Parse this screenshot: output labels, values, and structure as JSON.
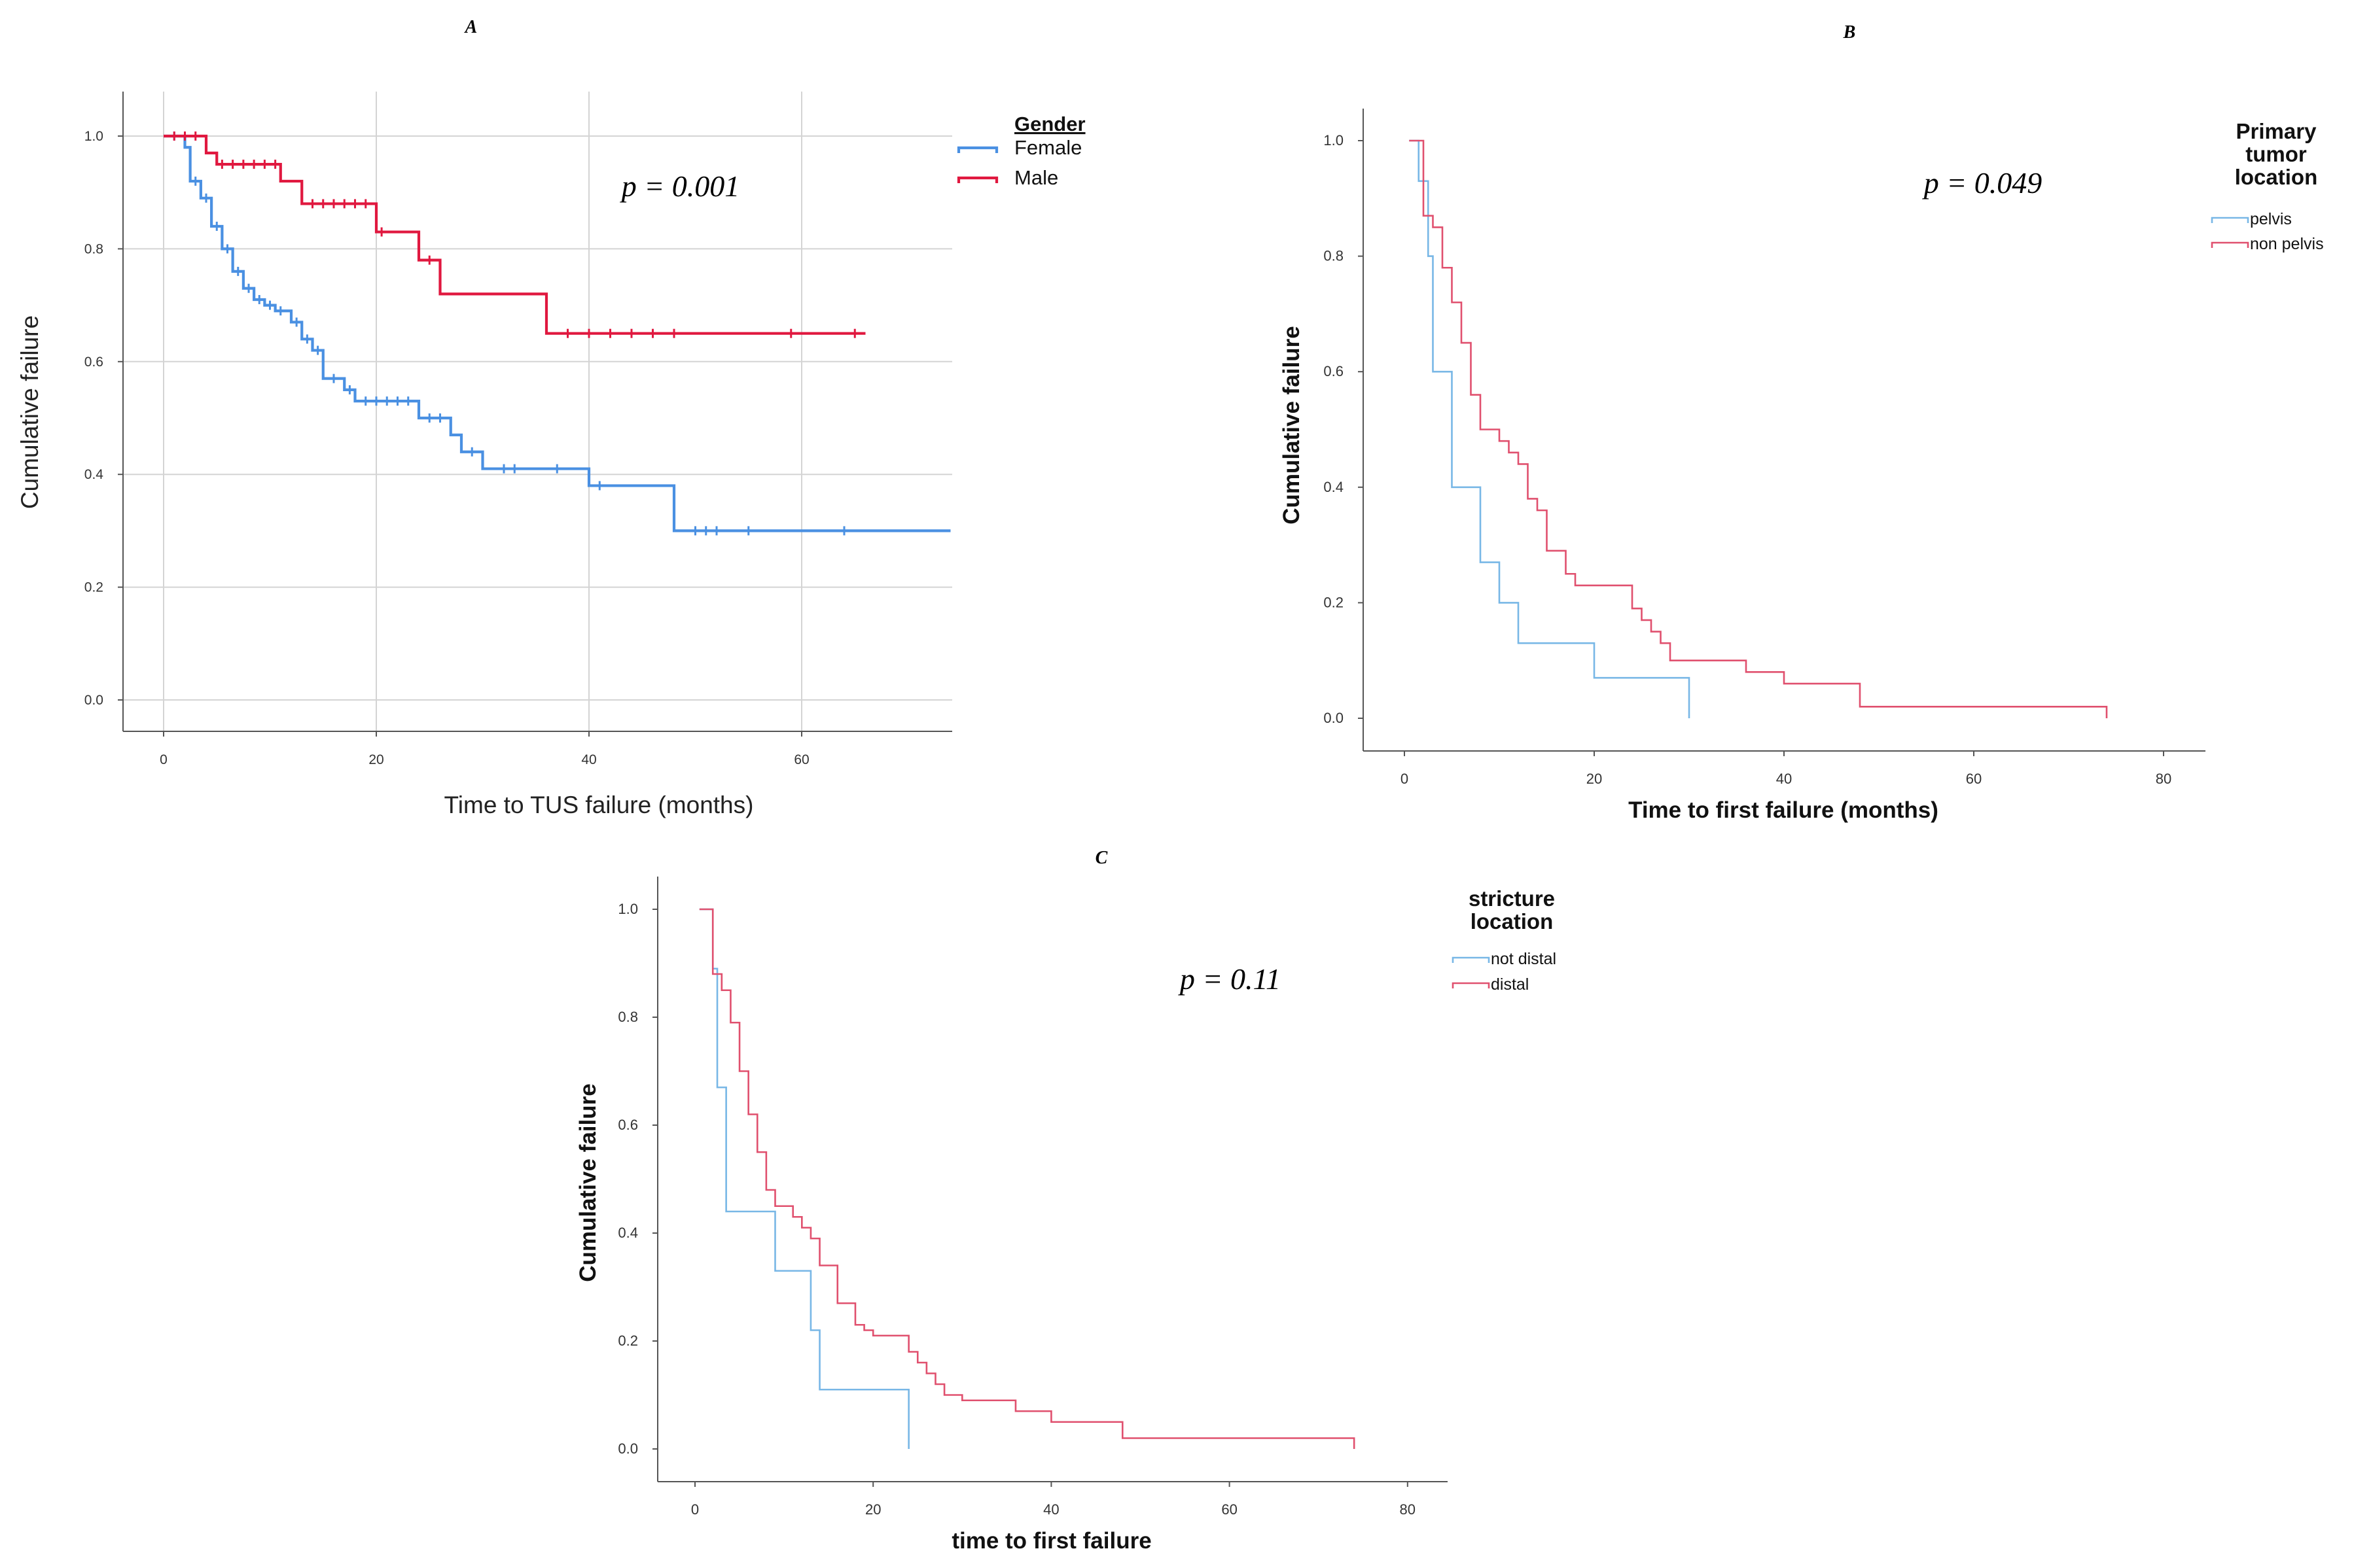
{
  "chart_data": [
    {
      "panel": "A",
      "type": "line",
      "subtype": "kaplan-meier-step",
      "annotation": "p = 0.001",
      "xlabel": "Time to TUS failure (months)",
      "ylabel": "Cumulative failure",
      "xlim": [
        -5,
        74
      ],
      "ylim": [
        -0.06,
        1.05
      ],
      "xticks": [
        "0",
        "20",
        "40",
        "60"
      ],
      "yticks": [
        "0.0",
        "0.2",
        "0.4",
        "0.6",
        "0.8",
        "1.0"
      ],
      "grid": true,
      "legend_position": "top-right",
      "legend_title": "Gender",
      "series": [
        {
          "name": "Female",
          "color": "#4a90e2",
          "steps": [
            [
              0,
              1.0
            ],
            [
              2,
              0.98
            ],
            [
              2.5,
              0.92
            ],
            [
              3.5,
              0.89
            ],
            [
              4.5,
              0.84
            ],
            [
              5.5,
              0.8
            ],
            [
              6.5,
              0.76
            ],
            [
              7.5,
              0.73
            ],
            [
              8.5,
              0.71
            ],
            [
              9.5,
              0.7
            ],
            [
              10.5,
              0.69
            ],
            [
              12,
              0.67
            ],
            [
              13,
              0.64
            ],
            [
              14,
              0.62
            ],
            [
              15,
              0.57
            ],
            [
              17,
              0.55
            ],
            [
              18,
              0.53
            ],
            [
              24,
              0.5
            ],
            [
              27,
              0.47
            ],
            [
              28,
              0.44
            ],
            [
              30,
              0.41
            ],
            [
              40,
              0.38
            ],
            [
              48,
              0.3
            ],
            [
              74,
              0.3
            ]
          ],
          "censored": [
            [
              1,
              1.0
            ],
            [
              3,
              0.92
            ],
            [
              4,
              0.89
            ],
            [
              5,
              0.84
            ],
            [
              6,
              0.8
            ],
            [
              7,
              0.76
            ],
            [
              8,
              0.73
            ],
            [
              9,
              0.71
            ],
            [
              10,
              0.7
            ],
            [
              11,
              0.69
            ],
            [
              12.5,
              0.67
            ],
            [
              13.5,
              0.64
            ],
            [
              14.5,
              0.62
            ],
            [
              16,
              0.57
            ],
            [
              17.5,
              0.55
            ],
            [
              19,
              0.53
            ],
            [
              20,
              0.53
            ],
            [
              21,
              0.53
            ],
            [
              22,
              0.53
            ],
            [
              23,
              0.53
            ],
            [
              25,
              0.5
            ],
            [
              26,
              0.5
            ],
            [
              29,
              0.44
            ],
            [
              32,
              0.41
            ],
            [
              33,
              0.41
            ],
            [
              37,
              0.41
            ],
            [
              41,
              0.38
            ],
            [
              50,
              0.3
            ],
            [
              51,
              0.3
            ],
            [
              52,
              0.3
            ],
            [
              55,
              0.3
            ],
            [
              64,
              0.3
            ]
          ]
        },
        {
          "name": "Male",
          "color": "#e0183f",
          "steps": [
            [
              0,
              1.0
            ],
            [
              4,
              0.97
            ],
            [
              5,
              0.95
            ],
            [
              11,
              0.92
            ],
            [
              13,
              0.88
            ],
            [
              20,
              0.83
            ],
            [
              24,
              0.78
            ],
            [
              26,
              0.72
            ],
            [
              36,
              0.65
            ],
            [
              66,
              0.65
            ]
          ],
          "censored": [
            [
              1,
              1.0
            ],
            [
              2,
              1.0
            ],
            [
              3,
              1.0
            ],
            [
              5.5,
              0.95
            ],
            [
              6.5,
              0.95
            ],
            [
              7.5,
              0.95
            ],
            [
              8.5,
              0.95
            ],
            [
              9.5,
              0.95
            ],
            [
              10.5,
              0.95
            ],
            [
              14,
              0.88
            ],
            [
              15,
              0.88
            ],
            [
              16,
              0.88
            ],
            [
              17,
              0.88
            ],
            [
              18,
              0.88
            ],
            [
              19,
              0.88
            ],
            [
              20.5,
              0.83
            ],
            [
              25,
              0.78
            ],
            [
              38,
              0.65
            ],
            [
              40,
              0.65
            ],
            [
              42,
              0.65
            ],
            [
              44,
              0.65
            ],
            [
              46,
              0.65
            ],
            [
              48,
              0.65
            ],
            [
              59,
              0.65
            ],
            [
              65,
              0.65
            ]
          ]
        }
      ]
    },
    {
      "panel": "B",
      "type": "line",
      "subtype": "kaplan-meier-step",
      "annotation": "p = 0.049",
      "xlabel": "Time to first failure (months)",
      "ylabel": "Cumulative failure",
      "xlim": [
        -5,
        84
      ],
      "ylim": [
        -0.06,
        1.06
      ],
      "xticks": [
        "0",
        "20",
        "40",
        "60",
        "80"
      ],
      "yticks": [
        "0.0",
        "0.2",
        "0.4",
        "0.6",
        "0.8",
        "1.0"
      ],
      "grid": false,
      "legend_position": "top-right",
      "legend_title": "Primary tumor location",
      "legend_title_lines": [
        "Primary",
        "tumor",
        "location"
      ],
      "series": [
        {
          "name": "pelvis",
          "color": "#78b7e6",
          "steps": [
            [
              0.5,
              1.0
            ],
            [
              1.5,
              0.93
            ],
            [
              2.5,
              0.8
            ],
            [
              3,
              0.6
            ],
            [
              5,
              0.4
            ],
            [
              8,
              0.27
            ],
            [
              10,
              0.2
            ],
            [
              12,
              0.13
            ],
            [
              20,
              0.07
            ],
            [
              30,
              0.0
            ]
          ]
        },
        {
          "name": "non pelvis",
          "color": "#e0506e",
          "steps": [
            [
              0.5,
              1.0
            ],
            [
              2,
              0.87
            ],
            [
              3,
              0.85
            ],
            [
              4,
              0.78
            ],
            [
              5,
              0.72
            ],
            [
              6,
              0.65
            ],
            [
              7,
              0.56
            ],
            [
              8,
              0.5
            ],
            [
              10,
              0.48
            ],
            [
              11,
              0.46
            ],
            [
              12,
              0.44
            ],
            [
              13,
              0.38
            ],
            [
              14,
              0.36
            ],
            [
              15,
              0.29
            ],
            [
              17,
              0.25
            ],
            [
              18,
              0.23
            ],
            [
              24,
              0.19
            ],
            [
              25,
              0.17
            ],
            [
              26,
              0.15
            ],
            [
              27,
              0.13
            ],
            [
              28,
              0.1
            ],
            [
              36,
              0.08
            ],
            [
              40,
              0.06
            ],
            [
              48,
              0.02
            ],
            [
              74,
              0.0
            ]
          ]
        }
      ]
    },
    {
      "panel": "C",
      "type": "line",
      "subtype": "kaplan-meier-step",
      "annotation": "p = 0.11",
      "xlabel": "time to first failure",
      "ylabel": "Cumulative failure",
      "xlim": [
        -4,
        84
      ],
      "ylim": [
        -0.06,
        1.06
      ],
      "xticks": [
        "0",
        "20",
        "40",
        "60",
        "80"
      ],
      "yticks": [
        "0.0",
        "0.2",
        "0.4",
        "0.6",
        "0.8",
        "1.0"
      ],
      "grid": false,
      "legend_position": "top-right",
      "legend_title": "stricture location",
      "legend_title_lines": [
        "stricture",
        "location"
      ],
      "series": [
        {
          "name": "not distal",
          "color": "#78b7e6",
          "steps": [
            [
              0.5,
              1.0
            ],
            [
              2,
              0.89
            ],
            [
              2.5,
              0.67
            ],
            [
              3.5,
              0.44
            ],
            [
              9,
              0.33
            ],
            [
              13,
              0.22
            ],
            [
              14,
              0.11
            ],
            [
              24,
              0.0
            ]
          ]
        },
        {
          "name": "distal",
          "color": "#e0506e",
          "steps": [
            [
              0.5,
              1.0
            ],
            [
              2,
              0.88
            ],
            [
              3,
              0.85
            ],
            [
              4,
              0.79
            ],
            [
              5,
              0.7
            ],
            [
              6,
              0.62
            ],
            [
              7,
              0.55
            ],
            [
              8,
              0.48
            ],
            [
              9,
              0.45
            ],
            [
              11,
              0.43
            ],
            [
              12,
              0.41
            ],
            [
              13,
              0.39
            ],
            [
              14,
              0.34
            ],
            [
              16,
              0.27
            ],
            [
              18,
              0.23
            ],
            [
              19,
              0.22
            ],
            [
              20,
              0.21
            ],
            [
              24,
              0.18
            ],
            [
              25,
              0.16
            ],
            [
              26,
              0.14
            ],
            [
              27,
              0.12
            ],
            [
              28,
              0.1
            ],
            [
              30,
              0.09
            ],
            [
              36,
              0.07
            ],
            [
              40,
              0.05
            ],
            [
              48,
              0.02
            ],
            [
              74,
              0.0
            ]
          ]
        }
      ]
    }
  ]
}
